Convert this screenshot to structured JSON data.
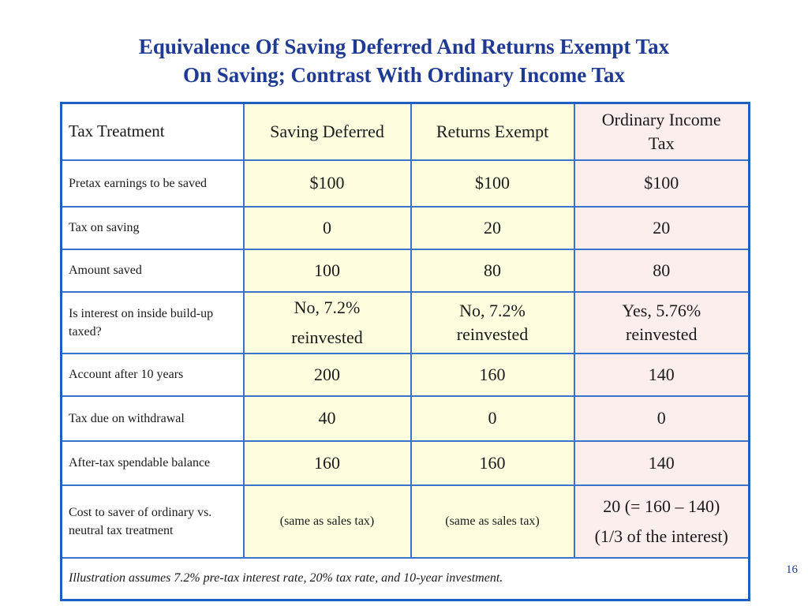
{
  "title": {
    "line1": "Equivalence Of Saving Deferred And Returns Exempt Tax",
    "line2": "On Saving; Contrast With Ordinary Income Tax"
  },
  "table": {
    "header": {
      "label": "Tax Treatment",
      "saving_deferred": "Saving Deferred",
      "returns_exempt": "Returns Exempt",
      "ordinary_line1": "Ordinary Income",
      "ordinary_line2": "Tax"
    },
    "rows": [
      {
        "label": "Pretax earnings to be saved",
        "saving_deferred": "$100",
        "returns_exempt": "$100",
        "ordinary": "$100"
      },
      {
        "label": "Tax on saving",
        "saving_deferred": "0",
        "returns_exempt": "20",
        "ordinary": "20"
      },
      {
        "label": "Amount saved",
        "saving_deferred": "100",
        "returns_exempt": "80",
        "ordinary": "80"
      },
      {
        "label": "Is interest on inside build-up taxed?",
        "saving_deferred_line1": "No, 7.2%",
        "saving_deferred_line2": "reinvested",
        "returns_exempt_line1": "No, 7.2%",
        "returns_exempt_line2": "reinvested",
        "ordinary_line1": "Yes, 5.76%",
        "ordinary_line2": "reinvested"
      },
      {
        "label": "Account after 10 years",
        "saving_deferred": "200",
        "returns_exempt": "160",
        "ordinary": "140"
      },
      {
        "label": "Tax due on withdrawal",
        "saving_deferred": "40",
        "returns_exempt": "0",
        "ordinary": "0"
      },
      {
        "label": "After-tax spendable balance",
        "saving_deferred": "160",
        "returns_exempt": "160",
        "ordinary": "140"
      },
      {
        "label": "Cost to saver of ordinary vs. neutral tax treatment",
        "saving_deferred": "(same as sales tax)",
        "returns_exempt": "(same as sales tax)",
        "ordinary_line1": "20 (= 160 – 140)",
        "ordinary_line2": "(1/3 of the interest)"
      }
    ],
    "note": "Illustration assumes 7.2% pre-tax interest rate, 20% tax rate, and 10-year investment."
  },
  "page_number": "16",
  "colors": {
    "title": "#1f3a93",
    "border": "#1f5fbf",
    "yellow_cell": "#ffffe0",
    "pink_cell": "#fdeeee"
  }
}
